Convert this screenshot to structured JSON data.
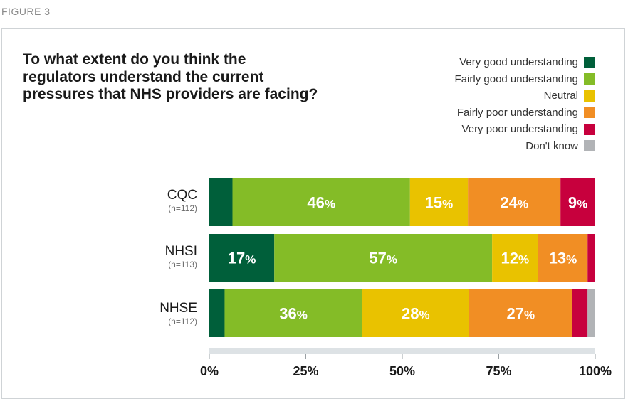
{
  "figure_label": "FIGURE 3",
  "chart_data": {
    "type": "bar",
    "orientation": "horizontal",
    "stacked": true,
    "title": "To what extent do you think the regulators understand the current pressures that NHS providers are facing?",
    "legend_position": "top-right",
    "categories": [
      "CQC",
      "NHSI",
      "NHSE"
    ],
    "category_notes": [
      "(n=112)",
      "(n=113)",
      "(n=112)"
    ],
    "xlim": [
      0,
      100
    ],
    "x_ticks": [
      0,
      25,
      50,
      75,
      100
    ],
    "x_tick_labels": [
      "0%",
      "25%",
      "50%",
      "75%",
      "100%"
    ],
    "series": [
      {
        "name": "Very good understanding",
        "color": "#005f3a",
        "values": [
          6,
          17,
          4
        ],
        "labels": [
          "",
          "17%",
          ""
        ]
      },
      {
        "name": "Fairly good understanding",
        "color": "#84bc27",
        "values": [
          46,
          57,
          36
        ],
        "labels": [
          "46%",
          "57%",
          "36%"
        ]
      },
      {
        "name": "Neutral",
        "color": "#e9c200",
        "values": [
          15,
          12,
          28
        ],
        "labels": [
          "15%",
          "12%",
          "28%"
        ]
      },
      {
        "name": "Fairly poor understanding",
        "color": "#f18e24",
        "values": [
          24,
          13,
          27
        ],
        "labels": [
          "24%",
          "13%",
          "27%"
        ]
      },
      {
        "name": "Very poor understanding",
        "color": "#c7003d",
        "values": [
          9,
          2,
          4
        ],
        "labels": [
          "9%",
          "",
          ""
        ]
      },
      {
        "name": "Don't know",
        "color": "#b1b3b6",
        "values": [
          0,
          0,
          2
        ],
        "labels": [
          "",
          "",
          ""
        ]
      }
    ]
  }
}
